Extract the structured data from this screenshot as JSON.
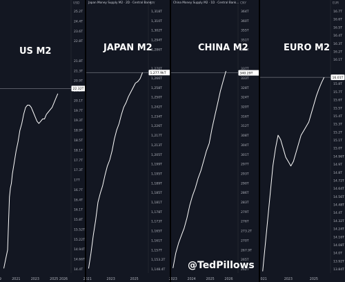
{
  "handle": "@TedPillows",
  "chart_data": [
    {
      "type": "line",
      "title": "US M2",
      "header": "",
      "unit": "USD",
      "price_label": "22.32T",
      "price": 22.32,
      "y_labels": [
        "25.2T",
        "24.4T",
        "23.6T",
        "22.8T",
        "22.32T",
        "21.8T",
        "21.3T",
        "20.9T",
        "20.5T",
        "20.1T",
        "19.7T",
        "19.3T",
        "18.9T",
        "18.5T",
        "18.1T",
        "17.7T",
        "17.3T",
        "17T",
        "16.7T",
        "16.4T",
        "16.1T",
        "15.8T",
        "15.52T",
        "15.22T",
        "14.94T",
        "14.66T",
        "14.4T"
      ],
      "ylim": [
        14.3,
        25.9
      ],
      "x_labels": [
        "2019",
        "2021",
        "2023",
        "2025",
        "2026"
      ],
      "x_years": [
        2019,
        2021,
        2023,
        2025,
        2026
      ],
      "xlim": [
        2019.3,
        2026.8
      ],
      "x": [
        2019.7,
        2019.9,
        2020.1,
        2020.2,
        2020.3,
        2020.4,
        2020.5,
        2020.6,
        2020.8,
        2021.0,
        2021.2,
        2021.4,
        2021.6,
        2021.8,
        2022.0,
        2022.2,
        2022.4,
        2022.6,
        2022.8,
        2023.0,
        2023.2,
        2023.4,
        2023.6,
        2023.8,
        2024.0,
        2024.2,
        2024.4,
        2024.6,
        2024.8,
        2025.0,
        2025.2,
        2025.4
      ],
      "values": [
        14.5,
        14.9,
        15.3,
        16.5,
        17.6,
        18.0,
        18.2,
        18.6,
        19.1,
        19.6,
        20.0,
        20.5,
        20.8,
        21.2,
        21.5,
        21.6,
        21.6,
        21.5,
        21.3,
        21.1,
        20.9,
        20.8,
        20.9,
        21.0,
        21.0,
        21.2,
        21.3,
        21.4,
        21.5,
        21.7,
        21.9,
        22.1
      ]
    },
    {
      "type": "line",
      "title": "JAPAN M2",
      "header": "Japan Money Supply M2 · 2D · Central Bank...",
      "unit": "JPY",
      "price_label": "1,277.9kT",
      "price": 1278,
      "y_labels": [
        "1,318T",
        "1,310T",
        "1,302T",
        "1,294T",
        "1,286T",
        "1,277.9kT",
        "1,270T",
        "1,266T",
        "1,258T",
        "1,250T",
        "1,242T",
        "1,234T",
        "1,226T",
        "1,217T",
        "1,213T",
        "1,205T",
        "1,199T",
        "1,195T",
        "1,189T",
        "1,185T",
        "1,181T",
        "1,178T",
        "1,173T",
        "1,165T",
        "1,161T",
        "1,157T",
        "1,153.2T",
        "1,148.4T"
      ],
      "ylim": [
        1145,
        1322
      ],
      "x_labels": [
        "2021",
        "2023",
        "2025"
      ],
      "x_years": [
        2021,
        2023,
        2025
      ],
      "xlim": [
        2020.9,
        2026.2
      ],
      "x": [
        2021.1,
        2021.3,
        2021.5,
        2021.7,
        2021.9,
        2022.1,
        2022.3,
        2022.5,
        2022.7,
        2022.9,
        2023.1,
        2023.3,
        2023.5,
        2023.7,
        2023.9,
        2024.1,
        2024.3,
        2024.5,
        2024.7,
        2024.9,
        2025.1,
        2025.3,
        2025.5,
        2025.7
      ],
      "values": [
        1148,
        1158,
        1170,
        1180,
        1192,
        1198,
        1203,
        1210,
        1216,
        1220,
        1226,
        1234,
        1240,
        1244,
        1250,
        1255,
        1258,
        1262,
        1265,
        1268,
        1271,
        1272,
        1274,
        1278
      ]
    },
    {
      "type": "line",
      "title": "CHINA M2",
      "header": "China Money Supply M2 · 1D · Central Bank...",
      "unit": "CNY",
      "price_label": "340.29T",
      "price": 340.29,
      "y_labels": [
        "364T",
        "360T",
        "355T",
        "351T",
        "346T",
        "340.29T",
        "337T",
        "333T",
        "328T",
        "324T",
        "320T",
        "316T",
        "312T",
        "308T",
        "304T",
        "301T",
        "297T",
        "293T",
        "290T",
        "286T",
        "283T",
        "279T",
        "276T",
        "273.2T",
        "270T",
        "267.9T",
        "265T",
        "262T"
      ],
      "ylim": [
        260,
        367
      ],
      "x_labels": [
        "2023",
        "2024",
        "2025",
        "2026"
      ],
      "x_years": [
        2023,
        2024,
        2025,
        2026
      ],
      "xlim": [
        2022.9,
        2026.5
      ],
      "x": [
        2023.0,
        2023.15,
        2023.3,
        2023.45,
        2023.6,
        2023.75,
        2023.9,
        2024.05,
        2024.2,
        2024.35,
        2024.5,
        2024.65,
        2024.8,
        2024.95,
        2025.1,
        2025.25,
        2025.4,
        2025.55,
        2025.7,
        2025.85
      ],
      "values": [
        262,
        268,
        272,
        275,
        278,
        282,
        287,
        291,
        294,
        298,
        301,
        305,
        309,
        312,
        318,
        323,
        328,
        333,
        337,
        341
      ]
    },
    {
      "type": "line",
      "title": "EURO M2",
      "header": "",
      "unit": "EUR",
      "price_label": "16.01T",
      "price": 16.01,
      "y_labels": [
        "16.7T",
        "16.6T",
        "16.5T",
        "16.4T",
        "16.3T",
        "16.2T",
        "16.1T",
        "16.01T",
        "15.9T",
        "15.8T",
        "15.7T",
        "15.6T",
        "15.5T",
        "15.4T",
        "15.3T",
        "15.2T",
        "15.1T",
        "15.0T",
        "14.96T",
        "14.9T",
        "14.8T",
        "14.72T",
        "14.64T",
        "14.56T",
        "14.48T",
        "14.4T",
        "14.32T",
        "14.24T",
        "14.16T",
        "14.08T",
        "14.0T",
        "13.92T",
        "13.84T"
      ],
      "ylim": [
        13.78,
        16.82
      ],
      "x_labels": [
        "2021",
        "2023",
        "2025"
      ],
      "x_years": [
        2021,
        2023,
        2025
      ],
      "xlim": [
        2020.8,
        2026.3
      ],
      "x": [
        2021.0,
        2021.2,
        2021.4,
        2021.6,
        2021.8,
        2022.0,
        2022.2,
        2022.4,
        2022.6,
        2022.8,
        2023.0,
        2023.2,
        2023.4,
        2023.6,
        2023.8,
        2024.0,
        2024.2,
        2024.4,
        2024.6,
        2024.8,
        2025.0,
        2025.2,
        2025.4,
        2025.6,
        2025.8
      ],
      "values": [
        13.8,
        14.1,
        14.4,
        14.7,
        15.0,
        15.2,
        15.35,
        15.3,
        15.2,
        15.1,
        15.05,
        15.0,
        15.05,
        15.15,
        15.25,
        15.35,
        15.4,
        15.45,
        15.5,
        15.6,
        15.7,
        15.8,
        15.88,
        15.95,
        16.01
      ]
    }
  ]
}
